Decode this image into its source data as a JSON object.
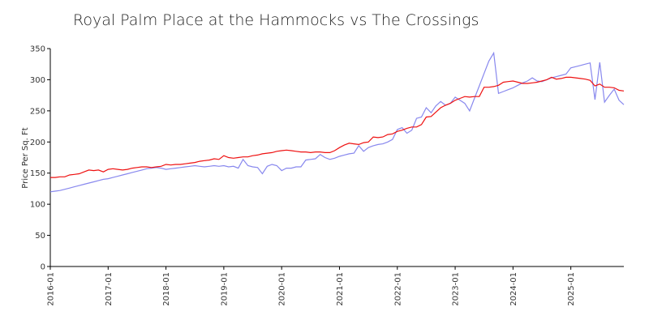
{
  "chart_data": {
    "type": "line",
    "title": "Royal Palm Place at the Hammocks vs The Crossings",
    "y_label": "Price Per Sq. Ft",
    "x": [
      "2016-01",
      "2016-02",
      "2016-03",
      "2016-04",
      "2016-05",
      "2016-06",
      "2016-07",
      "2016-08",
      "2016-09",
      "2016-10",
      "2016-11",
      "2016-12",
      "2017-01",
      "2017-02",
      "2017-03",
      "2017-04",
      "2017-05",
      "2017-06",
      "2017-07",
      "2017-08",
      "2017-09",
      "2017-10",
      "2017-11",
      "2017-12",
      "2018-01",
      "2018-02",
      "2018-03",
      "2018-04",
      "2018-05",
      "2018-06",
      "2018-07",
      "2018-08",
      "2018-09",
      "2018-10",
      "2018-11",
      "2018-12",
      "2019-01",
      "2019-02",
      "2019-03",
      "2019-04",
      "2019-05",
      "2019-06",
      "2019-07",
      "2019-08",
      "2019-09",
      "2019-10",
      "2019-11",
      "2019-12",
      "2020-01",
      "2020-02",
      "2020-03",
      "2020-04",
      "2020-05",
      "2020-06",
      "2020-07",
      "2020-08",
      "2020-09",
      "2020-10",
      "2020-11",
      "2020-12",
      "2021-01",
      "2021-02",
      "2021-03",
      "2021-04",
      "2021-05",
      "2021-06",
      "2021-07",
      "2021-08",
      "2021-09",
      "2021-10",
      "2021-11",
      "2021-12",
      "2022-01",
      "2022-02",
      "2022-03",
      "2022-04",
      "2022-05",
      "2022-06",
      "2022-07",
      "2022-08",
      "2022-09",
      "2022-10",
      "2022-11",
      "2022-12",
      "2023-01",
      "2023-02",
      "2023-03",
      "2023-04",
      "2023-05",
      "2023-06",
      "2023-07",
      "2023-08",
      "2023-09",
      "2023-10",
      "2023-11",
      "2023-12",
      "2024-01",
      "2024-02",
      "2024-03",
      "2024-04",
      "2024-05",
      "2024-06",
      "2024-07",
      "2024-08",
      "2024-09",
      "2024-10",
      "2024-11",
      "2024-12",
      "2025-01",
      "2025-02",
      "2025-03",
      "2025-04",
      "2025-05",
      "2025-06",
      "2025-07",
      "2025-08",
      "2025-09",
      "2025-10",
      "2025-11",
      "2025-12"
    ],
    "xticks": [
      "2016-01",
      "2017-01",
      "2018-01",
      "2019-01",
      "2020-01",
      "2021-01",
      "2022-01",
      "2023-01",
      "2024-01",
      "2025-01"
    ],
    "series": [
      {
        "color": "#8888ee",
        "values": [
          120,
          121,
          122,
          124,
          126,
          128,
          130,
          132,
          134,
          136,
          138,
          140,
          141,
          143,
          145,
          147,
          149,
          151,
          153,
          155,
          157,
          158,
          159,
          158,
          156,
          157,
          158,
          159,
          160,
          161,
          162,
          161,
          160,
          161,
          162,
          161,
          162,
          160,
          161,
          158,
          172,
          162,
          160,
          159,
          149,
          161,
          164,
          162,
          154,
          158,
          158,
          160,
          160,
          171,
          172,
          173,
          180,
          175,
          172,
          174,
          177,
          179,
          181,
          182,
          194,
          185,
          191,
          194,
          196,
          197,
          200,
          204,
          220,
          223,
          214,
          219,
          238,
          240,
          255,
          247,
          258,
          265,
          259,
          262,
          272,
          267,
          262,
          250,
          270,
          290,
          310,
          330,
          343,
          278,
          281,
          284,
          287,
          291,
          295,
          298,
          303,
          298,
          297,
          300,
          303,
          305,
          307,
          309,
          319,
          321,
          323,
          325,
          327,
          268,
          328,
          264,
          275,
          285,
          267,
          260
        ]
      },
      {
        "color": "#ee1111",
        "values": [
          143,
          143,
          144,
          144,
          147,
          148,
          149,
          152,
          155,
          154,
          155,
          152,
          156,
          157,
          156,
          155,
          156,
          158,
          159,
          160,
          160,
          159,
          160,
          161,
          164,
          163,
          164,
          164,
          165,
          166,
          167,
          169,
          170,
          171,
          173,
          172,
          178,
          175,
          174,
          175,
          176,
          176,
          178,
          179,
          181,
          182,
          183,
          185,
          186,
          187,
          186,
          185,
          184,
          184,
          183,
          184,
          184,
          183,
          183,
          186,
          191,
          195,
          198,
          197,
          196,
          199,
          200,
          208,
          207,
          208,
          212,
          213,
          217,
          219,
          222,
          224,
          224,
          228,
          240,
          241,
          248,
          255,
          259,
          262,
          267,
          270,
          273,
          272,
          273,
          273,
          288,
          288,
          289,
          291,
          296,
          297,
          298,
          296,
          294,
          294,
          295,
          296,
          298,
          300,
          304,
          301,
          302,
          304,
          304,
          303,
          302,
          301,
          299,
          290,
          293,
          288,
          288,
          287,
          283,
          282
        ]
      }
    ],
    "ylim": [
      0,
      350
    ],
    "yticks": [
      0,
      50,
      100,
      150,
      200,
      250,
      300,
      350
    ]
  }
}
